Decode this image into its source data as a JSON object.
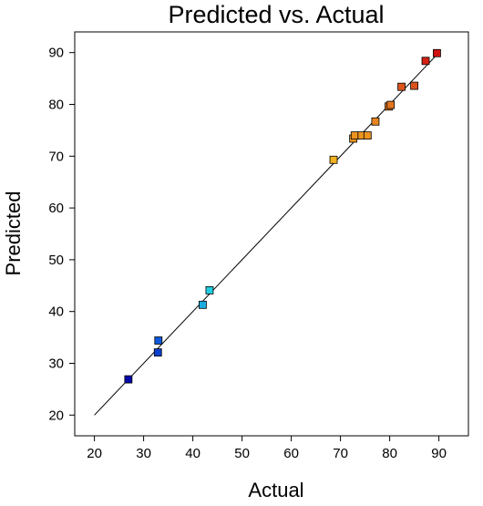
{
  "chart_data": {
    "type": "scatter",
    "title": "Predicted vs. Actual",
    "xlabel": "Actual",
    "ylabel": "Predicted",
    "xlim": [
      16,
      96
    ],
    "ylim": [
      16,
      94
    ],
    "xticks": [
      "20",
      "30",
      "40",
      "50",
      "60",
      "70",
      "80",
      "90"
    ],
    "yticks": [
      "20",
      "30",
      "40",
      "50",
      "60",
      "70",
      "80",
      "90"
    ],
    "grid": false,
    "legend": "none",
    "reference_line": {
      "from": [
        20,
        20
      ],
      "to": [
        90,
        90
      ]
    },
    "color_scale": [
      "#0000a0",
      "#1060e0",
      "#20d0e0",
      "#70e050",
      "#f0e020",
      "#f0a020",
      "#e07020",
      "#d01010"
    ],
    "points": [
      {
        "x": 26.9,
        "y": 26.9
      },
      {
        "x": 32.9,
        "y": 32.1
      },
      {
        "x": 33.0,
        "y": 34.4
      },
      {
        "x": 42.0,
        "y": 41.3
      },
      {
        "x": 43.4,
        "y": 44.1
      },
      {
        "x": 68.6,
        "y": 69.3
      },
      {
        "x": 72.6,
        "y": 73.4
      },
      {
        "x": 72.9,
        "y": 74.0
      },
      {
        "x": 74.3,
        "y": 74.0
      },
      {
        "x": 75.5,
        "y": 74.0
      },
      {
        "x": 77.1,
        "y": 76.7
      },
      {
        "x": 79.8,
        "y": 79.6
      },
      {
        "x": 80.2,
        "y": 79.9
      },
      {
        "x": 82.4,
        "y": 83.4
      },
      {
        "x": 85.0,
        "y": 83.6
      },
      {
        "x": 87.3,
        "y": 88.4
      },
      {
        "x": 89.6,
        "y": 89.9
      }
    ]
  }
}
